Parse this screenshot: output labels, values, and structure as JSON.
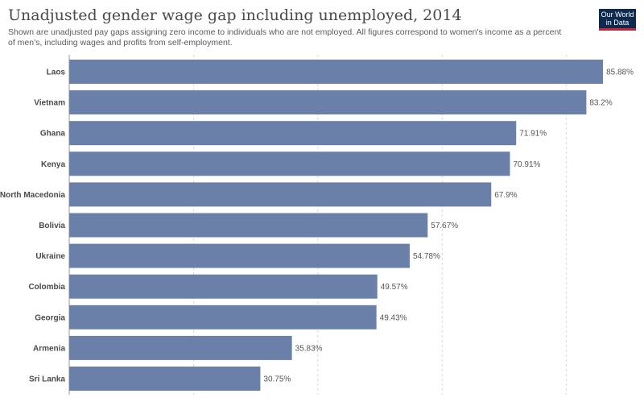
{
  "header": {
    "title": "Unadjusted gender wage gap including unemployed, 2014",
    "subtitle": "Shown are unadjusted pay gaps assigning zero income to individuals who are not employed. All figures correspond to women's income as a percent of men's, including wages and profits from self-employment."
  },
  "logo": {
    "line1": "Our World",
    "line2": "in Data"
  },
  "chart_data": {
    "type": "bar",
    "orientation": "horizontal",
    "title": "Unadjusted gender wage gap including unemployed, 2014",
    "categories": [
      "Laos",
      "Vietnam",
      "Ghana",
      "Kenya",
      "North Macedonia",
      "Bolivia",
      "Ukraine",
      "Colombia",
      "Georgia",
      "Armenia",
      "Sri Lanka"
    ],
    "values": [
      85.88,
      83.2,
      71.91,
      70.91,
      67.9,
      57.67,
      54.78,
      49.57,
      49.43,
      35.83,
      30.75
    ],
    "value_labels": [
      "85.88%",
      "83.2%",
      "71.91%",
      "70.91%",
      "67.9%",
      "57.67%",
      "54.78%",
      "49.57%",
      "49.43%",
      "35.83%",
      "30.75%"
    ],
    "xlim": [
      0,
      86
    ],
    "gridlines_at": [
      0,
      20,
      40,
      60,
      80
    ],
    "grid": true,
    "bar_color": "#6b80a8"
  }
}
